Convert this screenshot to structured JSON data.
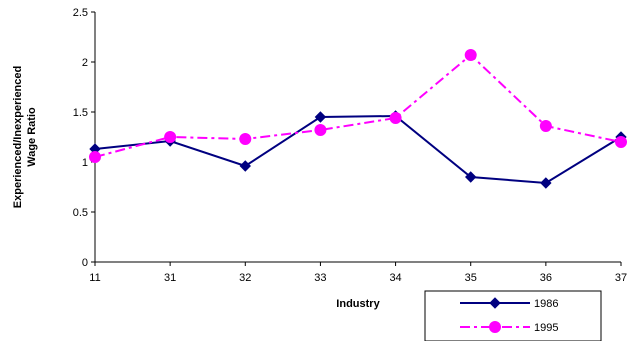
{
  "chart_data": {
    "type": "line",
    "categories": [
      "11",
      "31",
      "32",
      "33",
      "34",
      "35",
      "36",
      "37"
    ],
    "series": [
      {
        "name": "1986",
        "values": [
          1.13,
          1.21,
          0.96,
          1.45,
          1.46,
          0.85,
          0.79,
          1.25
        ],
        "color": "#000080",
        "line_style": "solid",
        "marker": "diamond"
      },
      {
        "name": "1995",
        "values": [
          1.05,
          1.25,
          1.23,
          1.32,
          1.44,
          2.07,
          1.36,
          1.2
        ],
        "color": "#FF00FF",
        "line_style": "dash-dot",
        "marker": "circle"
      }
    ],
    "xlabel": "Industry",
    "ylabel_lines": [
      "Experienced/Inexperienced",
      "Wage Ratio"
    ],
    "ylim": [
      0,
      2.5
    ],
    "yticks": [
      "0",
      "0.5",
      "1",
      "1.5",
      "2",
      "2.5"
    ],
    "grid": false,
    "legend_position": "bottom-right"
  }
}
